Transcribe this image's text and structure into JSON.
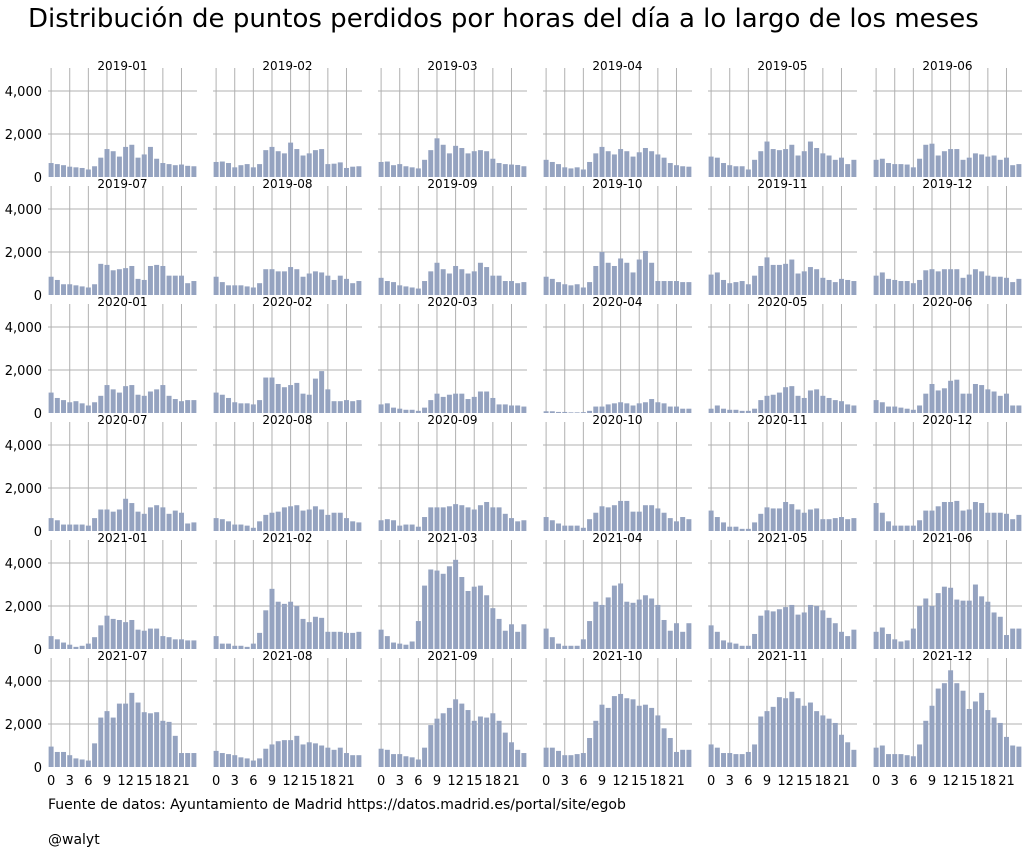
{
  "title": "Distribución de puntos perdidos por horas del día a lo largo de los meses",
  "footer": {
    "source": "Fuente de datos: Ayuntamiento de Madrid https://datos.madrid.es/portal/site/egob",
    "author": "@walyt"
  },
  "colors": {
    "bar": "#95a3c0",
    "grid": "#b0b0b0"
  },
  "chart_data": {
    "type": "bar",
    "layout": "small-multiples 6x6",
    "x": [
      0,
      1,
      2,
      3,
      4,
      5,
      6,
      7,
      8,
      9,
      10,
      11,
      12,
      13,
      14,
      15,
      16,
      17,
      18,
      19,
      20,
      21,
      22,
      23
    ],
    "x_ticks": [
      "0",
      "3",
      "6",
      "9",
      "12",
      "15",
      "18",
      "21"
    ],
    "ylim": [
      0,
      4700
    ],
    "y_ticks": [
      "0",
      "2,000",
      "4,000"
    ],
    "grid": true,
    "panels": [
      {
        "title": "2019-01",
        "values": [
          650,
          600,
          550,
          480,
          450,
          420,
          350,
          500,
          900,
          1300,
          1200,
          950,
          1400,
          1500,
          900,
          1050,
          1400,
          850,
          650,
          600,
          550,
          580,
          520,
          500
        ]
      },
      {
        "title": "2019-02",
        "values": [
          700,
          720,
          650,
          450,
          550,
          600,
          450,
          600,
          1250,
          1400,
          1200,
          1100,
          1600,
          1300,
          1000,
          1100,
          1250,
          1300,
          600,
          620,
          680,
          420,
          480,
          500
        ]
      },
      {
        "title": "2019-03",
        "values": [
          700,
          720,
          550,
          600,
          500,
          450,
          400,
          800,
          1250,
          1800,
          1500,
          1100,
          1450,
          1350,
          1100,
          1200,
          1250,
          1200,
          850,
          650,
          600,
          580,
          560,
          500
        ]
      },
      {
        "title": "2019-04",
        "values": [
          800,
          700,
          600,
          450,
          400,
          450,
          350,
          700,
          1100,
          1400,
          1200,
          1050,
          1300,
          1200,
          950,
          1150,
          1350,
          1200,
          1050,
          900,
          650,
          550,
          500,
          480
        ]
      },
      {
        "title": "2019-05",
        "values": [
          950,
          900,
          650,
          550,
          500,
          500,
          350,
          800,
          1200,
          1650,
          1300,
          1250,
          1300,
          1500,
          1000,
          1200,
          1650,
          1350,
          1100,
          1000,
          800,
          900,
          600,
          800
        ]
      },
      {
        "title": "2019-06",
        "values": [
          800,
          850,
          650,
          600,
          600,
          580,
          450,
          850,
          1500,
          1550,
          1000,
          1200,
          1300,
          1300,
          800,
          900,
          1100,
          1050,
          950,
          1000,
          800,
          900,
          550,
          600
        ]
      },
      {
        "title": "2019-07",
        "values": [
          850,
          700,
          500,
          500,
          450,
          400,
          350,
          500,
          1450,
          1400,
          1150,
          1200,
          1250,
          1350,
          750,
          700,
          1350,
          1400,
          1350,
          900,
          900,
          900,
          550,
          650
        ]
      },
      {
        "title": "2019-08",
        "values": [
          850,
          600,
          450,
          450,
          450,
          400,
          350,
          550,
          1200,
          1200,
          1100,
          1100,
          1300,
          1200,
          850,
          1000,
          1100,
          1050,
          900,
          700,
          900,
          750,
          550,
          650
        ]
      },
      {
        "title": "2019-09",
        "values": [
          800,
          650,
          600,
          450,
          400,
          350,
          300,
          650,
          1100,
          1500,
          1200,
          1000,
          1350,
          1200,
          1000,
          1100,
          1500,
          1300,
          900,
          900,
          650,
          650,
          550,
          600
        ]
      },
      {
        "title": "2019-10",
        "values": [
          850,
          750,
          600,
          500,
          450,
          500,
          350,
          600,
          1350,
          2000,
          1500,
          1350,
          1700,
          1500,
          1050,
          1650,
          2050,
          1500,
          650,
          650,
          650,
          650,
          600,
          600
        ]
      },
      {
        "title": "2019-11",
        "values": [
          950,
          1050,
          700,
          550,
          600,
          650,
          500,
          900,
          1350,
          1750,
          1400,
          1400,
          1450,
          1650,
          1000,
          1100,
          1300,
          1200,
          800,
          700,
          600,
          750,
          700,
          650
        ]
      },
      {
        "title": "2019-12",
        "values": [
          900,
          1050,
          750,
          700,
          650,
          650,
          550,
          700,
          1150,
          1200,
          1100,
          1200,
          1200,
          1200,
          800,
          950,
          1200,
          1100,
          900,
          850,
          850,
          800,
          600,
          750
        ]
      },
      {
        "title": "2020-01",
        "values": [
          950,
          700,
          600,
          500,
          550,
          450,
          350,
          500,
          800,
          1300,
          1100,
          950,
          1250,
          1300,
          850,
          800,
          1000,
          1100,
          1300,
          800,
          650,
          550,
          600,
          600
        ]
      },
      {
        "title": "2020-02",
        "values": [
          950,
          850,
          700,
          500,
          450,
          450,
          400,
          600,
          1650,
          1650,
          1350,
          1200,
          1300,
          1400,
          900,
          850,
          1600,
          1950,
          1100,
          550,
          550,
          600,
          550,
          600
        ]
      },
      {
        "title": "2020-03",
        "values": [
          400,
          450,
          250,
          200,
          150,
          150,
          100,
          250,
          600,
          900,
          750,
          850,
          900,
          900,
          650,
          750,
          1000,
          1000,
          700,
          400,
          400,
          350,
          350,
          300
        ]
      },
      {
        "title": "2020-04",
        "values": [
          80,
          80,
          50,
          50,
          30,
          30,
          40,
          100,
          300,
          300,
          400,
          450,
          500,
          450,
          350,
          450,
          500,
          650,
          500,
          450,
          300,
          300,
          200,
          200
        ]
      },
      {
        "title": "2020-05",
        "values": [
          200,
          350,
          200,
          150,
          150,
          100,
          100,
          200,
          600,
          800,
          850,
          950,
          1200,
          1250,
          800,
          700,
          1050,
          1100,
          800,
          700,
          600,
          550,
          400,
          350
        ]
      },
      {
        "title": "2020-06",
        "values": [
          600,
          500,
          300,
          300,
          250,
          200,
          150,
          350,
          900,
          1350,
          1050,
          1150,
          1500,
          1550,
          900,
          900,
          1350,
          1300,
          1100,
          1000,
          800,
          900,
          350,
          350
        ]
      },
      {
        "title": "2020-07",
        "values": [
          600,
          500,
          300,
          300,
          300,
          300,
          250,
          600,
          1000,
          1000,
          900,
          1000,
          1500,
          1300,
          900,
          800,
          1100,
          1200,
          1100,
          800,
          950,
          850,
          350,
          400
        ]
      },
      {
        "title": "2020-08",
        "values": [
          600,
          550,
          450,
          300,
          300,
          250,
          150,
          450,
          750,
          850,
          900,
          1100,
          1150,
          1200,
          950,
          1000,
          1150,
          1000,
          750,
          850,
          850,
          600,
          450,
          400
        ]
      },
      {
        "title": "2020-09",
        "values": [
          500,
          550,
          500,
          250,
          300,
          300,
          200,
          650,
          1100,
          1100,
          1100,
          1150,
          1250,
          1200,
          1100,
          1000,
          1200,
          1350,
          1100,
          1100,
          800,
          600,
          450,
          500
        ]
      },
      {
        "title": "2020-10",
        "values": [
          650,
          500,
          350,
          250,
          250,
          250,
          150,
          550,
          850,
          1150,
          1100,
          1200,
          1400,
          1400,
          900,
          900,
          1200,
          1200,
          1050,
          850,
          600,
          450,
          650,
          550
        ]
      },
      {
        "title": "2020-11",
        "values": [
          950,
          650,
          400,
          200,
          200,
          100,
          100,
          400,
          800,
          1100,
          1050,
          1050,
          1350,
          1250,
          1000,
          850,
          1000,
          1050,
          550,
          550,
          600,
          650,
          550,
          600
        ]
      },
      {
        "title": "2020-12",
        "values": [
          1300,
          850,
          450,
          250,
          250,
          250,
          250,
          500,
          950,
          950,
          1150,
          1350,
          1350,
          1400,
          950,
          1000,
          1350,
          1300,
          850,
          850,
          850,
          800,
          550,
          750
        ]
      },
      {
        "title": "2021-01",
        "values": [
          600,
          450,
          300,
          200,
          100,
          150,
          250,
          550,
          1100,
          1550,
          1400,
          1350,
          1250,
          1350,
          900,
          850,
          950,
          950,
          600,
          550,
          450,
          450,
          400,
          400
        ]
      },
      {
        "title": "2021-02",
        "values": [
          600,
          250,
          250,
          150,
          150,
          100,
          250,
          750,
          1800,
          2800,
          2200,
          2100,
          2200,
          2000,
          1400,
          1250,
          1500,
          1450,
          800,
          800,
          800,
          750,
          750,
          800
        ]
      },
      {
        "title": "2021-03",
        "values": [
          900,
          600,
          300,
          250,
          200,
          350,
          1300,
          2950,
          3700,
          3650,
          3500,
          3850,
          4150,
          3350,
          2700,
          2900,
          2950,
          2500,
          1900,
          1400,
          850,
          1150,
          800,
          1150
        ]
      },
      {
        "title": "2021-04",
        "values": [
          950,
          550,
          250,
          150,
          150,
          150,
          450,
          1300,
          2200,
          2050,
          2400,
          2950,
          3050,
          2200,
          2150,
          2300,
          2500,
          2350,
          2050,
          1350,
          850,
          1200,
          800,
          1200
        ]
      },
      {
        "title": "2021-05",
        "values": [
          1100,
          800,
          400,
          300,
          250,
          150,
          150,
          700,
          1550,
          1800,
          1750,
          1850,
          1950,
          2050,
          1600,
          1700,
          2050,
          2000,
          1800,
          1450,
          1200,
          800,
          600,
          900
        ]
      },
      {
        "title": "2021-06",
        "values": [
          800,
          1000,
          700,
          450,
          350,
          400,
          950,
          2000,
          2350,
          2000,
          2600,
          2900,
          2850,
          2300,
          2250,
          2250,
          3000,
          2450,
          2200,
          1700,
          1500,
          650,
          950,
          950
        ]
      },
      {
        "title": "2021-07",
        "values": [
          950,
          700,
          700,
          550,
          400,
          350,
          300,
          1100,
          2300,
          2600,
          2300,
          2950,
          2950,
          3450,
          3000,
          2550,
          2500,
          2550,
          2150,
          2100,
          1450,
          650,
          650,
          650
        ]
      },
      {
        "title": "2021-08",
        "values": [
          750,
          650,
          600,
          550,
          450,
          400,
          300,
          400,
          850,
          1050,
          1200,
          1250,
          1250,
          1450,
          1050,
          1150,
          1100,
          1000,
          900,
          800,
          900,
          650,
          550,
          550
        ]
      },
      {
        "title": "2021-09",
        "values": [
          850,
          800,
          600,
          600,
          500,
          450,
          350,
          900,
          1950,
          2250,
          2500,
          2750,
          3150,
          2950,
          2650,
          2150,
          2350,
          2300,
          2500,
          2150,
          1600,
          1150,
          800,
          650
        ]
      },
      {
        "title": "2021-10",
        "values": [
          900,
          900,
          750,
          550,
          550,
          600,
          650,
          1350,
          2150,
          2900,
          2750,
          3300,
          3400,
          3200,
          3150,
          2850,
          2900,
          2750,
          2400,
          1800,
          1350,
          700,
          800,
          800
        ]
      },
      {
        "title": "2021-11",
        "values": [
          1050,
          900,
          650,
          650,
          600,
          600,
          700,
          1050,
          2350,
          2600,
          2800,
          3250,
          3200,
          3500,
          3200,
          2850,
          3000,
          2600,
          2400,
          2250,
          2050,
          1500,
          1150,
          800
        ]
      },
      {
        "title": "2021-12",
        "values": [
          900,
          1000,
          600,
          600,
          600,
          550,
          500,
          1050,
          2150,
          2850,
          3650,
          3900,
          4500,
          3900,
          3550,
          2700,
          3050,
          3450,
          2650,
          2300,
          2050,
          1400,
          1000,
          950
        ]
      }
    ]
  }
}
